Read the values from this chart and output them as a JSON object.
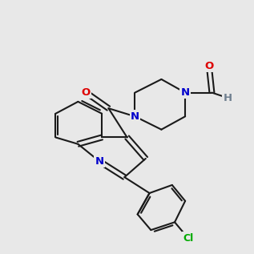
{
  "bg_color": "#e8e8e8",
  "bond_color": "#1a1a1a",
  "N_color": "#0000cc",
  "O_color": "#dd0000",
  "Cl_color": "#00aa00",
  "H_color": "#708090",
  "bond_width": 1.5,
  "font_size_atom": 9.5
}
